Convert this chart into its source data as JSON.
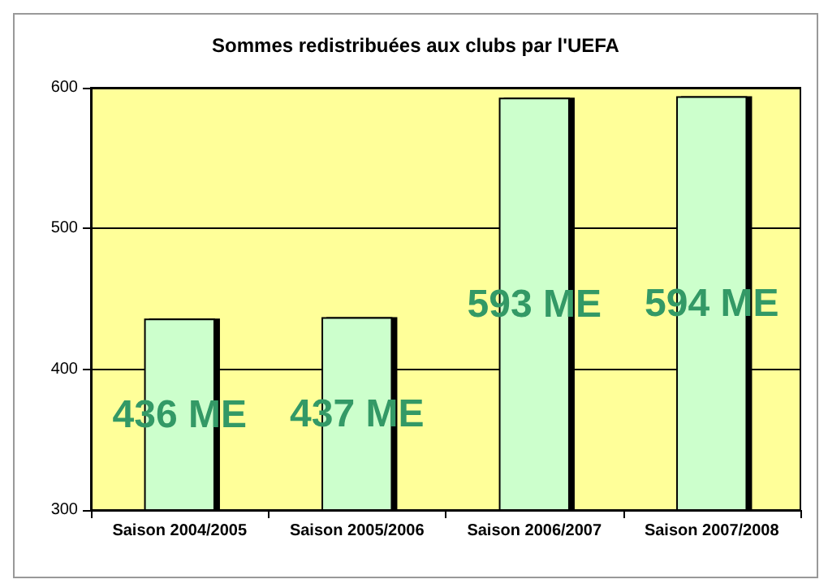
{
  "chart_data": {
    "type": "bar",
    "title": "Sommes redistribuées aux clubs par l'UEFA",
    "categories": [
      "Saison 2004/2005",
      "Saison 2005/2006",
      "Saison 2006/2007",
      "Saison 2007/2008"
    ],
    "values": [
      436,
      437,
      593,
      594
    ],
    "value_labels": [
      "436 ME",
      "437 ME",
      "593 ME",
      "594 ME"
    ],
    "color": "#ccffcc",
    "ylim": [
      300,
      600
    ],
    "yticks": [
      300,
      400,
      500,
      600
    ],
    "grid": "y"
  }
}
